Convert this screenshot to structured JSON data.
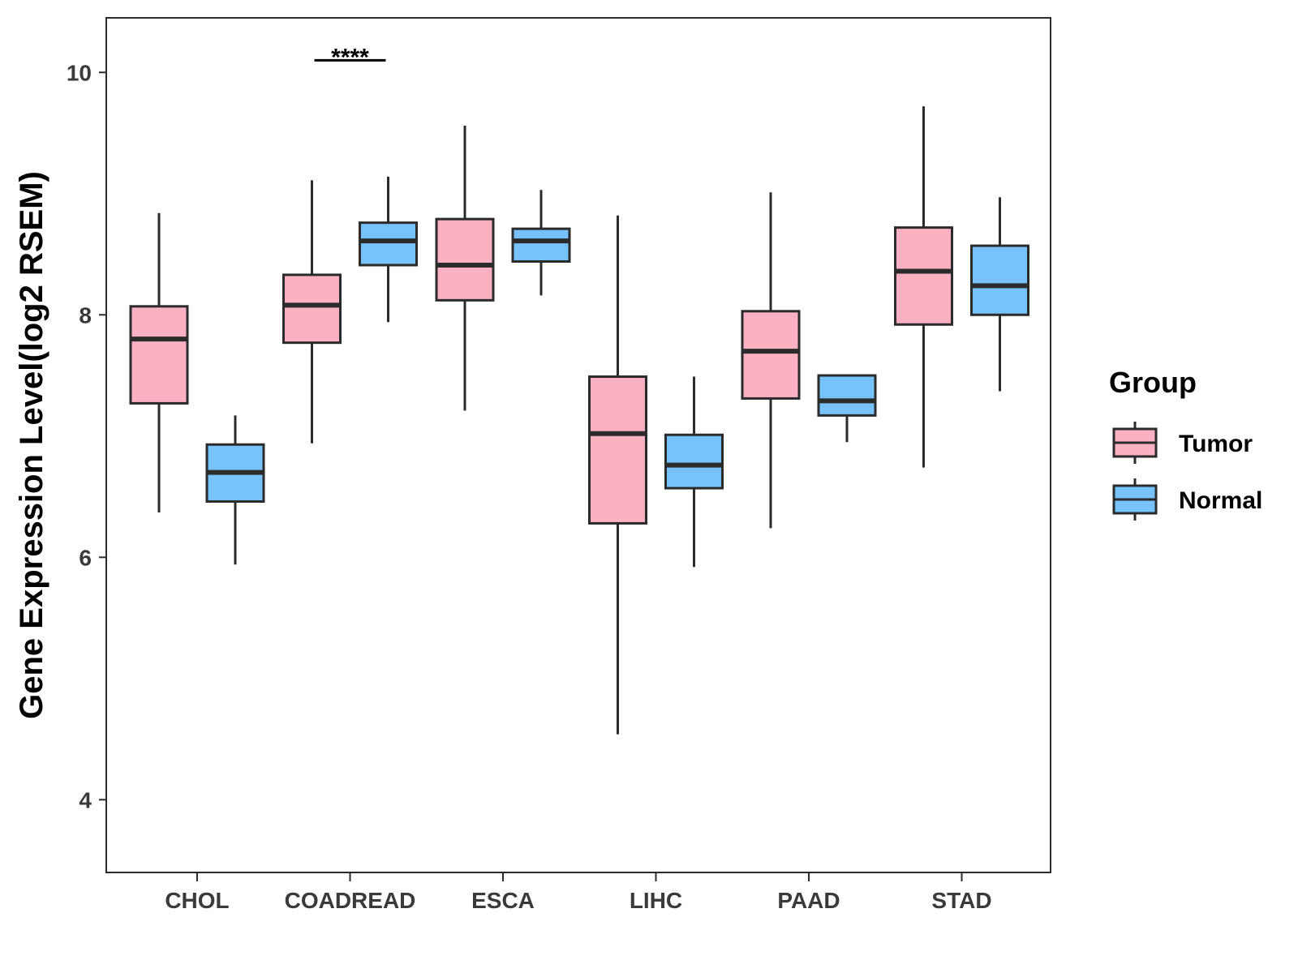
{
  "chart_data": {
    "type": "boxplot",
    "title": "",
    "xlabel": "",
    "ylabel": "Gene Expression Level(log2 RSEM)",
    "ylim": [
      3.4,
      10.45
    ],
    "yticks": [
      4,
      6,
      8,
      10
    ],
    "grid": false,
    "legend": {
      "title": "Group",
      "position": "right"
    },
    "categories": [
      "CHOL",
      "COADREAD",
      "ESCA",
      "LIHC",
      "PAAD",
      "STAD"
    ],
    "series": [
      {
        "name": "Tumor",
        "color": "#FBB1C2",
        "boxes": [
          {
            "whisker_low": 6.37,
            "q1": 7.27,
            "median": 7.8,
            "q3": 8.07,
            "whisker_high": 8.84
          },
          {
            "whisker_low": 6.94,
            "q1": 7.77,
            "median": 8.08,
            "q3": 8.33,
            "whisker_high": 9.11
          },
          {
            "whisker_low": 7.21,
            "q1": 8.12,
            "median": 8.41,
            "q3": 8.79,
            "whisker_high": 9.56
          },
          {
            "whisker_low": 4.54,
            "q1": 6.28,
            "median": 7.02,
            "q3": 7.49,
            "whisker_high": 8.82
          },
          {
            "whisker_low": 6.24,
            "q1": 7.31,
            "median": 7.7,
            "q3": 8.03,
            "whisker_high": 9.01
          },
          {
            "whisker_low": 6.74,
            "q1": 7.92,
            "median": 8.36,
            "q3": 8.72,
            "whisker_high": 9.72
          }
        ]
      },
      {
        "name": "Normal",
        "color": "#77C2FA",
        "boxes": [
          {
            "whisker_low": 5.94,
            "q1": 6.46,
            "median": 6.7,
            "q3": 6.93,
            "whisker_high": 7.17
          },
          {
            "whisker_low": 7.94,
            "q1": 8.41,
            "median": 8.61,
            "q3": 8.76,
            "whisker_high": 9.14
          },
          {
            "whisker_low": 8.16,
            "q1": 8.44,
            "median": 8.61,
            "q3": 8.71,
            "whisker_high": 9.03
          },
          {
            "whisker_low": 5.92,
            "q1": 6.57,
            "median": 6.76,
            "q3": 7.01,
            "whisker_high": 7.49
          },
          {
            "whisker_low": 6.95,
            "q1": 7.17,
            "median": 7.29,
            "q3": 7.5,
            "whisker_high": 7.5
          },
          {
            "whisker_low": 7.37,
            "q1": 8.0,
            "median": 8.24,
            "q3": 8.57,
            "whisker_high": 8.97
          }
        ]
      }
    ],
    "annotations": [
      {
        "category": "COADREAD",
        "text": "****",
        "y": 10.1
      }
    ]
  }
}
